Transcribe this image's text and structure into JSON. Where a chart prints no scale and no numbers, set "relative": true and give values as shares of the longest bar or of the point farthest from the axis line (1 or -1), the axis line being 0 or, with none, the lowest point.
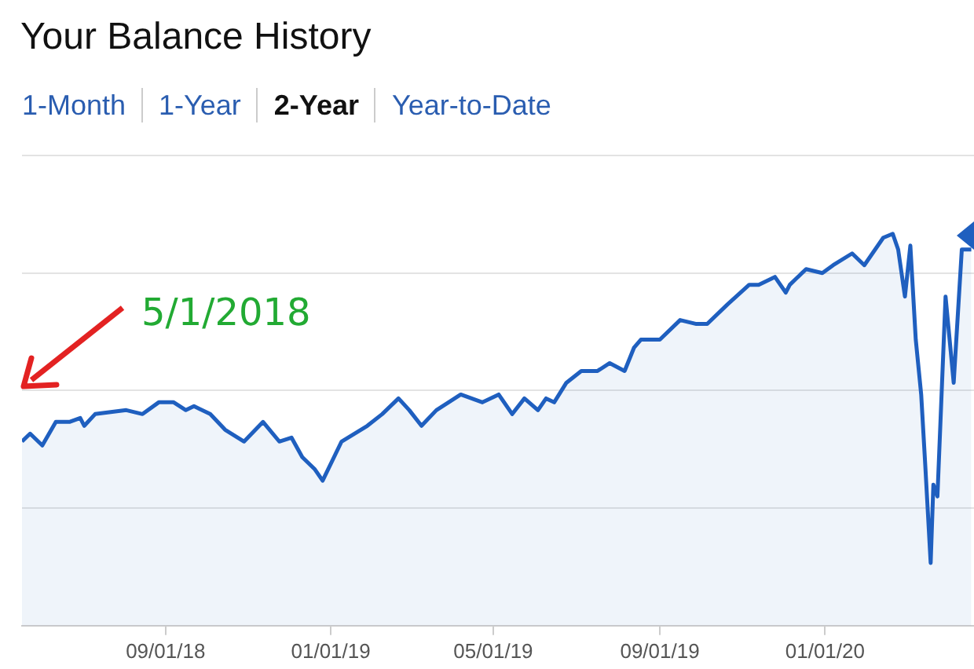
{
  "chart_data": {
    "type": "area",
    "title": "Your Balance History",
    "relative": true,
    "grid": "y",
    "legend": false,
    "marker": "none",
    "annotations": [
      "1-Month",
      "1-Year",
      "2-Year",
      "Year-to-Date",
      "5/1/2018"
    ],
    "xlim": [
      "2018-05-18",
      "2020-04-20"
    ],
    "xticks": [
      {
        "value": "2018-09-01",
        "label": "09/01/18"
      },
      {
        "value": "2019-01-01",
        "label": "01/01/19"
      },
      {
        "value": "2019-05-01",
        "label": "05/01/19"
      },
      {
        "value": "2019-09-01",
        "label": "09/01/19"
      },
      {
        "value": "2020-01-01",
        "label": "01/01/20"
      }
    ],
    "x": [
      "2018-05-18",
      "2018-05-24",
      "2018-06-02",
      "2018-06-12",
      "2018-06-22",
      "2018-06-30",
      "2018-07-03",
      "2018-07-11",
      "2018-08-03",
      "2018-08-15",
      "2018-08-27",
      "2018-09-07",
      "2018-09-16",
      "2018-09-22",
      "2018-10-04",
      "2018-10-15",
      "2018-10-29",
      "2018-11-12",
      "2018-11-24",
      "2018-12-03",
      "2018-12-11",
      "2018-12-20",
      "2018-12-26",
      "2019-01-09",
      "2019-01-28",
      "2019-02-08",
      "2019-02-20",
      "2019-02-28",
      "2019-03-09",
      "2019-03-20",
      "2019-04-07",
      "2019-04-23",
      "2019-05-05",
      "2019-05-15",
      "2019-05-24",
      "2019-06-03",
      "2019-06-09",
      "2019-06-15",
      "2019-06-24",
      "2019-07-05",
      "2019-07-17",
      "2019-07-26",
      "2019-08-06",
      "2019-08-13",
      "2019-08-18",
      "2019-09-01",
      "2019-09-16",
      "2019-09-28",
      "2019-10-06",
      "2019-10-21",
      "2019-11-06",
      "2019-11-13",
      "2019-11-25",
      "2019-12-03",
      "2019-12-06",
      "2019-12-18",
      "2019-12-30",
      "2020-01-07",
      "2020-01-21",
      "2020-01-30",
      "2020-02-05",
      "2020-02-13",
      "2020-02-20",
      "2020-02-24",
      "2020-02-29",
      "2020-03-04",
      "2020-03-08",
      "2020-03-12",
      "2020-03-15",
      "2020-03-19",
      "2020-03-21",
      "2020-03-24",
      "2020-03-30",
      "2020-04-05",
      "2020-04-11",
      "2020-04-18"
    ],
    "series": [
      {
        "color": "#1f5fbf",
        "values": [
          0.47,
          0.49,
          0.46,
          0.52,
          0.52,
          0.53,
          0.51,
          0.54,
          0.55,
          0.54,
          0.57,
          0.57,
          0.55,
          0.56,
          0.54,
          0.5,
          0.47,
          0.52,
          0.47,
          0.48,
          0.43,
          0.4,
          0.37,
          0.47,
          0.51,
          0.54,
          0.58,
          0.55,
          0.51,
          0.55,
          0.59,
          0.57,
          0.59,
          0.54,
          0.58,
          0.55,
          0.58,
          0.57,
          0.62,
          0.65,
          0.65,
          0.67,
          0.65,
          0.71,
          0.73,
          0.73,
          0.78,
          0.77,
          0.77,
          0.82,
          0.87,
          0.87,
          0.89,
          0.85,
          0.87,
          0.91,
          0.9,
          0.92,
          0.95,
          0.92,
          0.95,
          0.99,
          1,
          0.96,
          0.84,
          0.97,
          0.73,
          0.59,
          0.41,
          0.16,
          0.36,
          0.33,
          0.84,
          0.62,
          0.96,
          0.96
        ]
      }
    ]
  }
}
